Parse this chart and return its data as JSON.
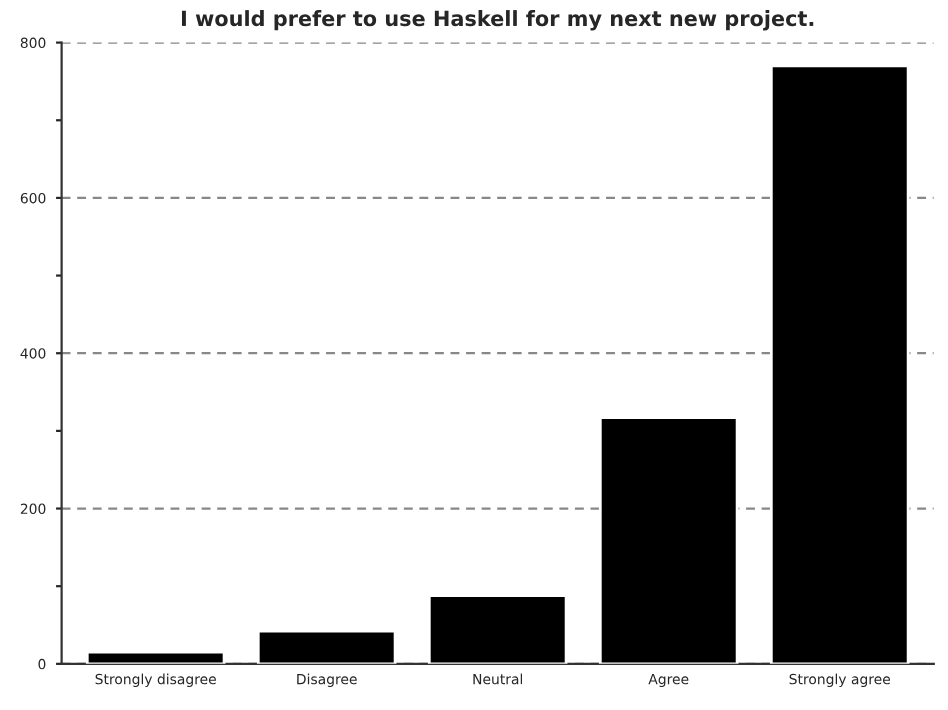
{
  "chart_data": {
    "type": "bar",
    "title": "I would prefer to use Haskell for my next new project.",
    "categories": [
      "Strongly disagree",
      "Disagree",
      "Neutral",
      "Agree",
      "Strongly agree"
    ],
    "values": [
      15,
      42,
      88,
      317,
      770
    ],
    "color": "#000000",
    "ylim": [
      0,
      800
    ],
    "yticks": [
      0,
      {
        "value": 100,
        "label": null
      },
      200,
      {
        "value": 300,
        "label": null
      },
      400,
      {
        "value": 500,
        "label": null
      },
      600,
      {
        "value": 700,
        "label": null
      },
      800
    ],
    "grid": "y"
  }
}
